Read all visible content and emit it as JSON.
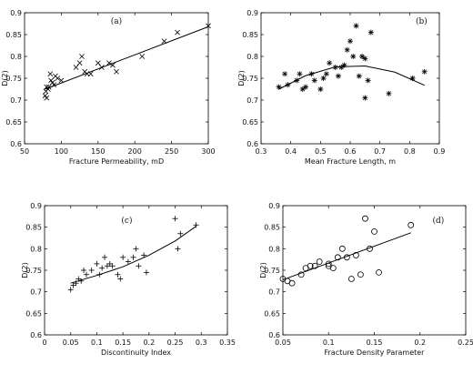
{
  "chart_data": [
    {
      "type": "scatter",
      "tag": "(a)",
      "xlabel": "Fracture Permeability, mD",
      "ylabel": "D(2)",
      "xlim": [
        50,
        300
      ],
      "ylim": [
        0.6,
        0.9
      ],
      "xticks": [
        "50",
        "100",
        "150",
        "200",
        "250",
        "300"
      ],
      "yticks": [
        "0.6",
        "0.65",
        "0.7",
        "0.75",
        "0.8",
        "0.85",
        "0.9"
      ],
      "marker": "x",
      "x": [
        78,
        79,
        80,
        80,
        82,
        83,
        85,
        86,
        88,
        90,
        92,
        95,
        100,
        120,
        125,
        128,
        132,
        135,
        140,
        150,
        155,
        165,
        170,
        175,
        210,
        240,
        258,
        300
      ],
      "y": [
        0.71,
        0.72,
        0.73,
        0.705,
        0.725,
        0.73,
        0.76,
        0.745,
        0.74,
        0.735,
        0.755,
        0.75,
        0.745,
        0.775,
        0.785,
        0.8,
        0.765,
        0.76,
        0.76,
        0.785,
        0.775,
        0.785,
        0.78,
        0.765,
        0.8,
        0.835,
        0.855,
        0.87
      ],
      "fit": {
        "type": "line",
        "x": [
          78,
          300
        ],
        "y": [
          0.725,
          0.868
        ]
      }
    },
    {
      "type": "scatter",
      "tag": "(b)",
      "xlabel": "Mean Fracture Length, m",
      "ylabel": "D(2)",
      "xlim": [
        0.3,
        0.9
      ],
      "ylim": [
        0.6,
        0.9
      ],
      "xticks": [
        "0.3",
        "0.4",
        "0.5",
        "0.6",
        "0.7",
        "0.8",
        "0.9"
      ],
      "yticks": [
        "0.6",
        "0.65",
        "0.7",
        "0.75",
        "0.8",
        "0.85",
        "0.9"
      ],
      "marker": "*",
      "x": [
        0.36,
        0.38,
        0.39,
        0.42,
        0.43,
        0.44,
        0.45,
        0.47,
        0.48,
        0.5,
        0.51,
        0.52,
        0.53,
        0.55,
        0.56,
        0.57,
        0.58,
        0.59,
        0.6,
        0.61,
        0.62,
        0.63,
        0.64,
        0.65,
        0.65,
        0.66,
        0.67,
        0.73,
        0.81,
        0.85
      ],
      "y": [
        0.73,
        0.76,
        0.735,
        0.745,
        0.76,
        0.725,
        0.73,
        0.76,
        0.745,
        0.725,
        0.75,
        0.76,
        0.785,
        0.775,
        0.755,
        0.775,
        0.78,
        0.815,
        0.835,
        0.8,
        0.87,
        0.755,
        0.8,
        0.705,
        0.795,
        0.745,
        0.855,
        0.715,
        0.75,
        0.765
      ],
      "fit": {
        "type": "curve",
        "x": [
          0.36,
          0.45,
          0.55,
          0.65,
          0.75,
          0.85
        ],
        "y": [
          0.725,
          0.756,
          0.776,
          0.778,
          0.764,
          0.734
        ]
      }
    },
    {
      "type": "scatter",
      "tag": "(c)",
      "xlabel": "Discontinuity Index",
      "ylabel": "D(2)",
      "xlim": [
        0,
        0.35
      ],
      "ylim": [
        0.6,
        0.9
      ],
      "xticks": [
        "0",
        "0.05",
        "0.1",
        "0.15",
        "0.2",
        "0.25",
        "0.3",
        "0.35"
      ],
      "yticks": [
        "0.6",
        "0.65",
        "0.7",
        "0.75",
        "0.8",
        "0.85",
        "0.9"
      ],
      "marker": "+",
      "x": [
        0.05,
        0.055,
        0.06,
        0.065,
        0.07,
        0.075,
        0.08,
        0.09,
        0.1,
        0.105,
        0.11,
        0.115,
        0.12,
        0.125,
        0.13,
        0.14,
        0.145,
        0.15,
        0.16,
        0.17,
        0.175,
        0.18,
        0.19,
        0.195,
        0.25,
        0.255,
        0.26,
        0.29
      ],
      "y": [
        0.705,
        0.715,
        0.72,
        0.73,
        0.725,
        0.75,
        0.74,
        0.75,
        0.765,
        0.74,
        0.755,
        0.78,
        0.76,
        0.765,
        0.76,
        0.74,
        0.73,
        0.78,
        0.77,
        0.78,
        0.8,
        0.76,
        0.785,
        0.745,
        0.87,
        0.8,
        0.835,
        0.855
      ],
      "fit": {
        "type": "curve",
        "x": [
          0.05,
          0.1,
          0.15,
          0.2,
          0.25,
          0.29
        ],
        "y": [
          0.72,
          0.738,
          0.758,
          0.785,
          0.818,
          0.852
        ]
      }
    },
    {
      "type": "scatter",
      "tag": "(d)",
      "xlabel": "Fracture Density Parameter",
      "ylabel": "D(2)",
      "xlim": [
        0.05,
        0.25
      ],
      "ylim": [
        0.6,
        0.9
      ],
      "xticks": [
        "0.05",
        "0.1",
        "0.15",
        "0.2",
        "0.25"
      ],
      "yticks": [
        "0.6",
        "0.65",
        "0.7",
        "0.75",
        "0.8",
        "0.85",
        "0.9"
      ],
      "marker": "o",
      "x": [
        0.05,
        0.055,
        0.06,
        0.07,
        0.075,
        0.08,
        0.085,
        0.09,
        0.1,
        0.1,
        0.105,
        0.11,
        0.115,
        0.12,
        0.125,
        0.13,
        0.135,
        0.14,
        0.145,
        0.15,
        0.155,
        0.19
      ],
      "y": [
        0.73,
        0.725,
        0.72,
        0.74,
        0.755,
        0.76,
        0.76,
        0.77,
        0.76,
        0.765,
        0.755,
        0.78,
        0.8,
        0.78,
        0.73,
        0.785,
        0.74,
        0.87,
        0.8,
        0.84,
        0.745,
        0.855
      ],
      "fit": {
        "type": "line",
        "x": [
          0.05,
          0.19
        ],
        "y": [
          0.728,
          0.837
        ]
      }
    }
  ]
}
